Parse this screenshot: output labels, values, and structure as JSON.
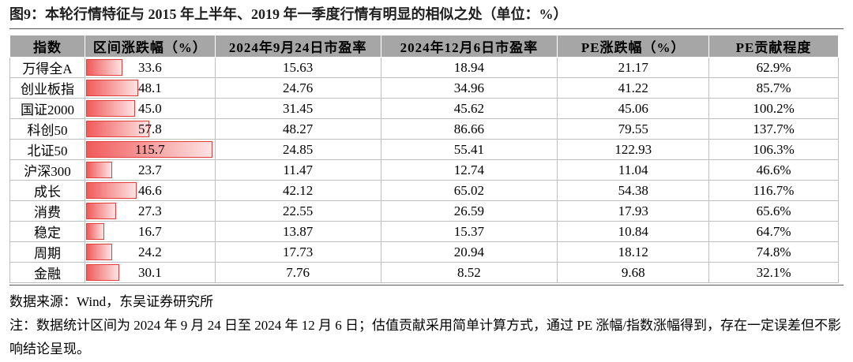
{
  "header": {
    "title": "图9：本轮行情特征与 2015 年上半年、2019 年一季度行情有明显的相似之处（单位：%）"
  },
  "table": {
    "columns": [
      "指数",
      "区间涨跌幅（%）",
      "2024年9月24日市盈率",
      "2024年12月6日市盈率",
      "PE涨跌幅（%）",
      "PE贡献程度"
    ],
    "rows": [
      [
        "万得全A",
        {
          "value": 33.6,
          "label": "33.6"
        },
        "15.63",
        "18.94",
        "21.17",
        "62.9%"
      ],
      [
        "创业板指",
        {
          "value": 48.1,
          "label": "48.1"
        },
        "24.76",
        "34.96",
        "41.22",
        "85.7%"
      ],
      [
        "国证2000",
        {
          "value": 45.0,
          "label": "45.0"
        },
        "31.45",
        "45.62",
        "45.06",
        "100.2%"
      ],
      [
        "科创50",
        {
          "value": 57.8,
          "label": "57.8"
        },
        "48.27",
        "86.66",
        "79.55",
        "137.7%"
      ],
      [
        "北证50",
        {
          "value": 115.7,
          "label": "115.7"
        },
        "24.85",
        "55.41",
        "122.93",
        "106.3%"
      ],
      [
        "沪深300",
        {
          "value": 23.7,
          "label": "23.7"
        },
        "11.47",
        "12.74",
        "11.04",
        "46.6%"
      ],
      [
        "成长",
        {
          "value": 46.6,
          "label": "46.6"
        },
        "42.12",
        "65.02",
        "54.38",
        "116.7%"
      ],
      [
        "消费",
        {
          "value": 27.3,
          "label": "27.3"
        },
        "22.55",
        "26.59",
        "17.93",
        "65.6%"
      ],
      [
        "稳定",
        {
          "value": 16.7,
          "label": "16.7"
        },
        "13.87",
        "15.37",
        "10.84",
        "64.7%"
      ],
      [
        "周期",
        {
          "value": 24.2,
          "label": "24.2"
        },
        "17.73",
        "20.94",
        "18.12",
        "74.8%"
      ],
      [
        "金融",
        {
          "value": 30.1,
          "label": "30.1"
        },
        "7.76",
        "8.52",
        "9.68",
        "32.1%"
      ]
    ]
  },
  "footer": {
    "source": "数据来源：Wind，东吴证券研究所",
    "note": "注：数据统计区间为 2024 年 9 月 24 日至 2024 年 12 月 6 日；估值贡献采用简单计算方式，通过 PE 涨幅/指数涨幅得到，存在一定误差但不影响结论呈现。"
  }
}
